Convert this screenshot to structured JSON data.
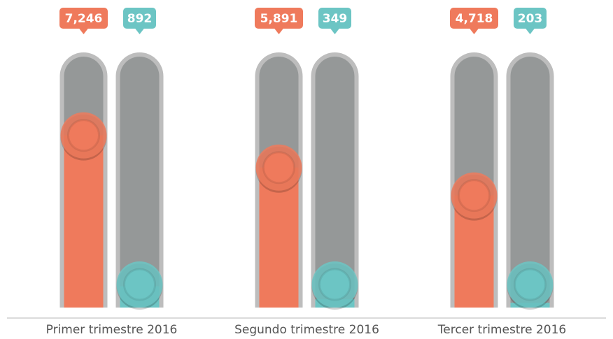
{
  "chart_data": {
    "type": "bar",
    "categories": [
      "Primer trimestre 2016",
      "Segundo trimestre 2016",
      "Tercer trimestre 2016"
    ],
    "series": [
      {
        "color": "#ef7a5c",
        "values": [
          7246,
          5891,
          4718
        ],
        "value_labels": [
          "7,246",
          "5,891",
          "4,718"
        ]
      },
      {
        "color": "#6cc5c4",
        "values": [
          892,
          349,
          203
        ],
        "value_labels": [
          "892",
          "349",
          "203"
        ]
      }
    ],
    "ylim": [
      0,
      10000
    ]
  }
}
